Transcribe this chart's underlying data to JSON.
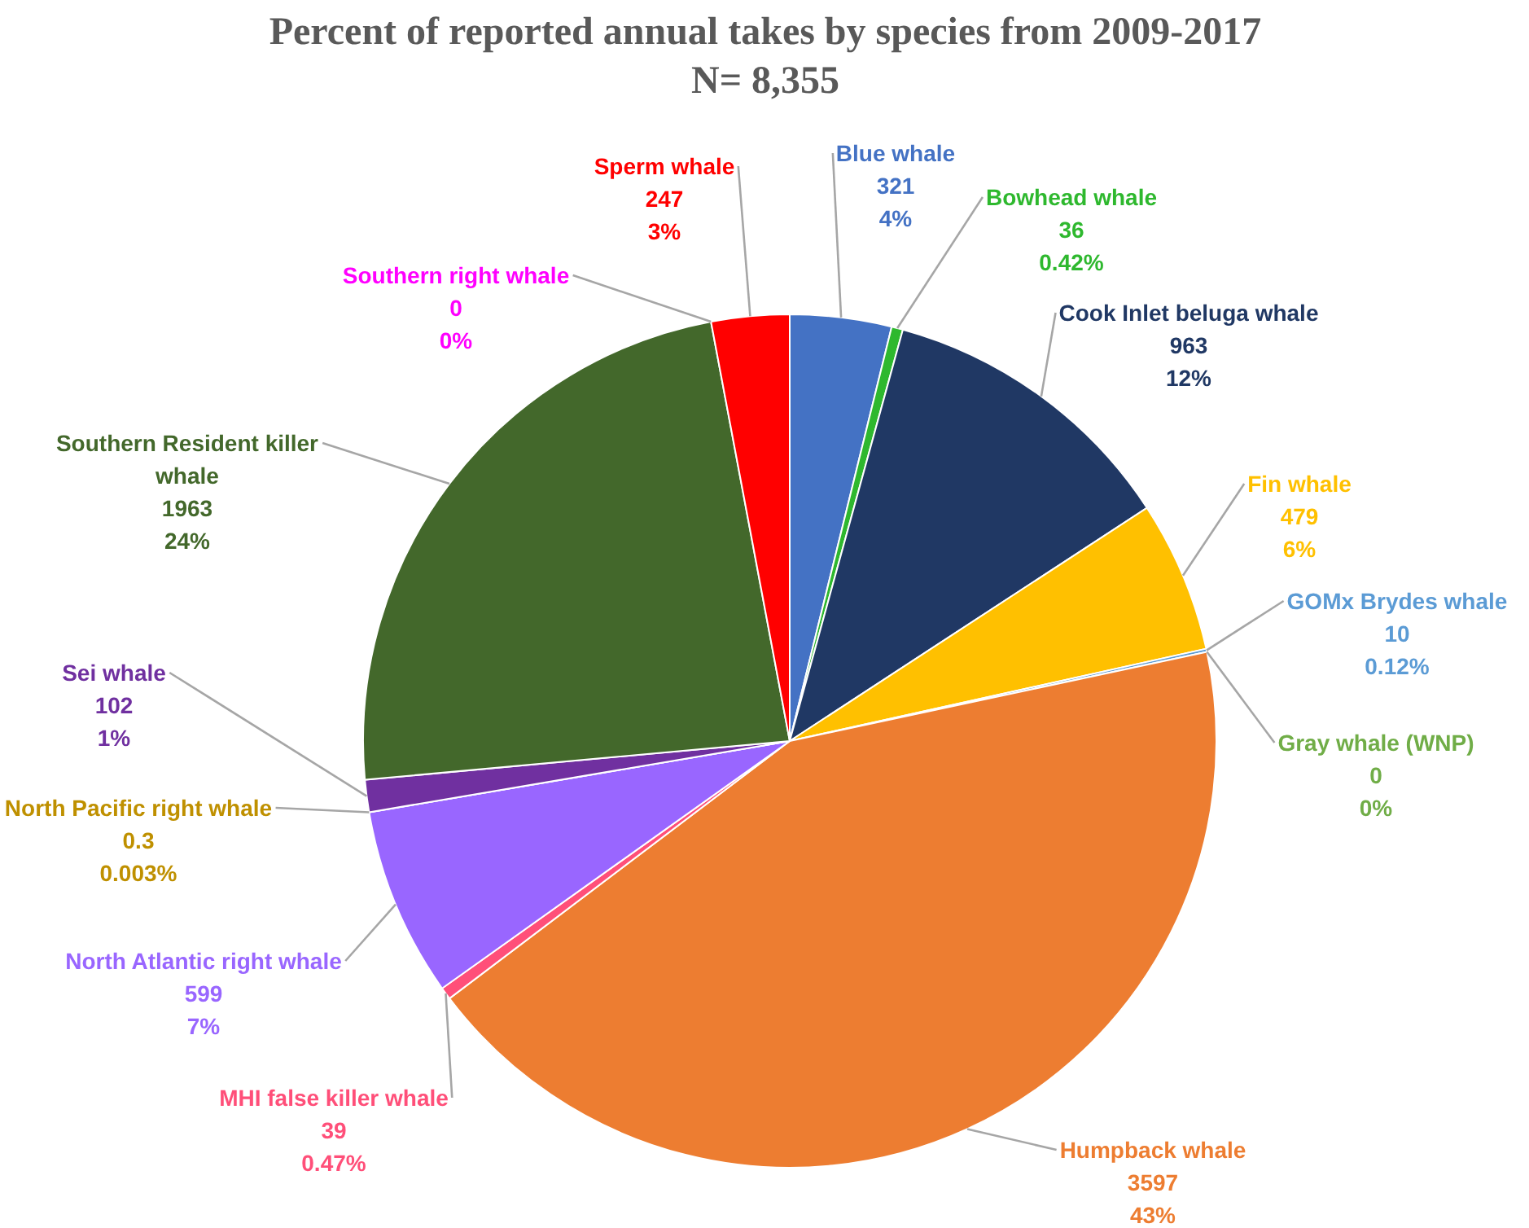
{
  "chart_data": {
    "type": "pie",
    "title": "Percent of reported annual takes by species from 2009-2017\nN= 8,355",
    "categories": [
      "Blue whale",
      "Bowhead whale",
      "Cook Inlet beluga whale",
      "Fin whale",
      "GOMx Brydes whale",
      "Gray whale (WNP)",
      "Humpback whale",
      "MHI false killer whale",
      "North Atlantic right whale",
      "North Pacific right whale",
      "Sei whale",
      "Southern Resident killer whale",
      "Southern right whale",
      "Sperm whale"
    ],
    "values": [
      321,
      36,
      963,
      479,
      10,
      0,
      3597,
      39,
      599,
      0.3,
      102,
      1963,
      0,
      247
    ],
    "value_labels": [
      "321\n4%",
      "36\n0.42%",
      "963\n12%",
      "479\n6%",
      "10\n0.12%",
      "0\n0%",
      "3597\n43%",
      "39\n0.47%",
      "599\n7%",
      "0.3\n0.003%",
      "102\n1%",
      "1963\n24%",
      "0\n0%",
      "247\n3%"
    ],
    "colors": [
      "#4472c4",
      "#2eb82e",
      "#203864",
      "#ffc000",
      "#5b9bd5",
      "#70ad47",
      "#ed7d31",
      "#ff4f79",
      "#9966ff",
      "#bf9000",
      "#7030a0",
      "#43682b",
      "#ff00ff",
      "#ff0000"
    ],
    "legend": false
  }
}
